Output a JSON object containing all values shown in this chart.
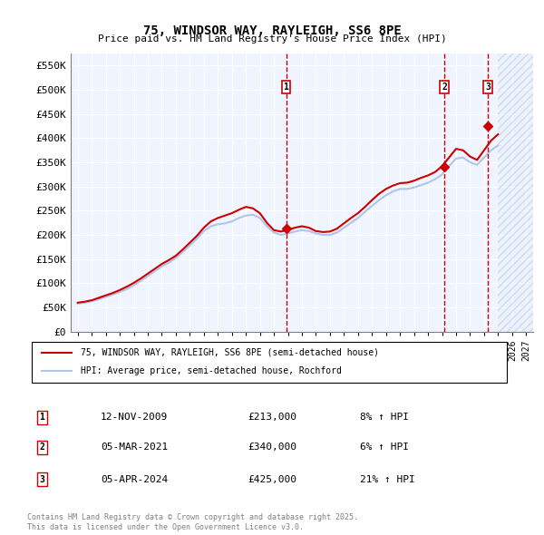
{
  "title": "75, WINDSOR WAY, RAYLEIGH, SS6 8PE",
  "subtitle": "Price paid vs. HM Land Registry's House Price Index (HPI)",
  "ylabel_ticks": [
    "£0",
    "£50K",
    "£100K",
    "£150K",
    "£200K",
    "£250K",
    "£300K",
    "£350K",
    "£400K",
    "£450K",
    "£500K",
    "£550K"
  ],
  "ytick_values": [
    0,
    50000,
    100000,
    150000,
    200000,
    250000,
    300000,
    350000,
    400000,
    450000,
    500000,
    550000
  ],
  "xlim": [
    1994.5,
    2027.5
  ],
  "ylim": [
    0,
    575000
  ],
  "hpi_color": "#aec6e8",
  "price_color": "#cc0000",
  "vline_color": "#cc0000",
  "background_color": "#f0f4ff",
  "hatch_color": "#aec6e8",
  "transactions": [
    {
      "year_float": 2009.87,
      "price": 213000,
      "label": "1",
      "date": "12-NOV-2009",
      "pct": "8%",
      "direction": "↑"
    },
    {
      "year_float": 2021.17,
      "price": 340000,
      "label": "2",
      "date": "05-MAR-2021",
      "pct": "6%",
      "direction": "↑"
    },
    {
      "year_float": 2024.26,
      "price": 425000,
      "label": "3",
      "date": "05-APR-2024",
      "pct": "21%",
      "direction": "↑"
    }
  ],
  "legend_line1": "75, WINDSOR WAY, RAYLEIGH, SS6 8PE (semi-detached house)",
  "legend_line2": "HPI: Average price, semi-detached house, Rochford",
  "table_rows": [
    {
      "num": "1",
      "date": "12-NOV-2009",
      "price": "£213,000",
      "info": "8% ↑ HPI"
    },
    {
      "num": "2",
      "date": "05-MAR-2021",
      "price": "£340,000",
      "info": "6% ↑ HPI"
    },
    {
      "num": "3",
      "date": "05-APR-2024",
      "price": "£425,000",
      "info": "21% ↑ HPI"
    }
  ],
  "footer": "Contains HM Land Registry data © Crown copyright and database right 2025.\nThis data is licensed under the Open Government Licence v3.0.",
  "hpi_data_years": [
    1995,
    1995.5,
    1996,
    1996.5,
    1997,
    1997.5,
    1998,
    1998.5,
    1999,
    1999.5,
    2000,
    2000.5,
    2001,
    2001.5,
    2002,
    2002.5,
    2003,
    2003.5,
    2004,
    2004.5,
    2005,
    2005.5,
    2006,
    2006.5,
    2007,
    2007.5,
    2008,
    2008.5,
    2009,
    2009.5,
    2010,
    2010.5,
    2011,
    2011.5,
    2012,
    2012.5,
    2013,
    2013.5,
    2014,
    2014.5,
    2015,
    2015.5,
    2016,
    2016.5,
    2017,
    2017.5,
    2018,
    2018.5,
    2019,
    2019.5,
    2020,
    2020.5,
    2021,
    2021.5,
    2022,
    2022.5,
    2023,
    2023.5,
    2024,
    2024.5,
    2025
  ],
  "hpi_values": [
    58000,
    60000,
    63000,
    67000,
    72000,
    77000,
    82000,
    88000,
    96000,
    105000,
    115000,
    125000,
    135000,
    143000,
    152000,
    165000,
    178000,
    192000,
    208000,
    218000,
    222000,
    224000,
    228000,
    235000,
    240000,
    242000,
    235000,
    218000,
    205000,
    200000,
    203000,
    207000,
    210000,
    208000,
    203000,
    200000,
    200000,
    205000,
    215000,
    225000,
    235000,
    248000,
    260000,
    272000,
    282000,
    290000,
    295000,
    295000,
    298000,
    303000,
    308000,
    315000,
    325000,
    342000,
    358000,
    360000,
    350000,
    345000,
    360000,
    375000,
    385000
  ],
  "price_data_years": [
    1995,
    1995.5,
    1996,
    1996.5,
    1997,
    1997.5,
    1998,
    1998.5,
    1999,
    1999.5,
    2000,
    2000.5,
    2001,
    2001.5,
    2002,
    2002.5,
    2003,
    2003.5,
    2004,
    2004.5,
    2005,
    2005.5,
    2006,
    2006.5,
    2007,
    2007.5,
    2008,
    2008.5,
    2009,
    2009.5,
    2010,
    2010.5,
    2011,
    2011.5,
    2012,
    2012.5,
    2013,
    2013.5,
    2014,
    2014.5,
    2015,
    2015.5,
    2016,
    2016.5,
    2017,
    2017.5,
    2018,
    2018.5,
    2019,
    2019.5,
    2020,
    2020.5,
    2021,
    2021.5,
    2022,
    2022.5,
    2023,
    2023.5,
    2024,
    2024.5,
    2025
  ],
  "price_values": [
    60000,
    62000,
    65000,
    70000,
    75000,
    80000,
    86000,
    93000,
    101000,
    110000,
    120000,
    130000,
    140000,
    148000,
    157000,
    170000,
    184000,
    198000,
    215000,
    228000,
    235000,
    240000,
    245000,
    252000,
    258000,
    255000,
    245000,
    225000,
    210000,
    207000,
    210000,
    215000,
    218000,
    215000,
    208000,
    206000,
    207000,
    213000,
    224000,
    235000,
    245000,
    258000,
    272000,
    285000,
    295000,
    302000,
    307000,
    308000,
    312000,
    318000,
    323000,
    330000,
    342000,
    360000,
    378000,
    375000,
    362000,
    355000,
    375000,
    395000,
    408000
  ]
}
